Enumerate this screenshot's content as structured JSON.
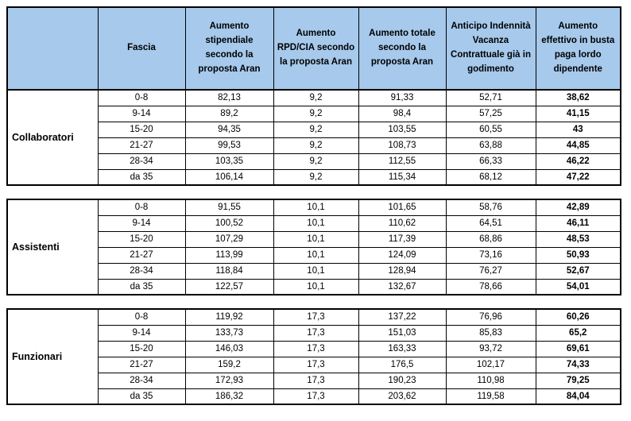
{
  "colors": {
    "header_bg": "#a6c9ec",
    "border": "#000000",
    "text": "#000000",
    "page_bg": "#ffffff"
  },
  "table": {
    "columns": [
      "",
      "Fascia",
      "Aumento stipendiale secondo la proposta Aran",
      "Aumento RPD/CIA secondo la proposta Aran",
      "Aumento totale secondo la proposta Aran",
      "Anticipo Indennità Vacanza Contrattuale già in godimento",
      "Aumento effettivo in busta paga lordo dipendente"
    ],
    "groups": [
      {
        "name": "Collaboratori",
        "rows": [
          [
            "0-8",
            "82,13",
            "9,2",
            "91,33",
            "52,71",
            "38,62"
          ],
          [
            "9-14",
            "89,2",
            "9,2",
            "98,4",
            "57,25",
            "41,15"
          ],
          [
            "15-20",
            "94,35",
            "9,2",
            "103,55",
            "60,55",
            "43"
          ],
          [
            "21-27",
            "99,53",
            "9,2",
            "108,73",
            "63,88",
            "44,85"
          ],
          [
            "28-34",
            "103,35",
            "9,2",
            "112,55",
            "66,33",
            "46,22"
          ],
          [
            "da 35",
            "106,14",
            "9,2",
            "115,34",
            "68,12",
            "47,22"
          ]
        ]
      },
      {
        "name": "Assistenti",
        "rows": [
          [
            "0-8",
            "91,55",
            "10,1",
            "101,65",
            "58,76",
            "42,89"
          ],
          [
            "9-14",
            "100,52",
            "10,1",
            "110,62",
            "64,51",
            "46,11"
          ],
          [
            "15-20",
            "107,29",
            "10,1",
            "117,39",
            "68,86",
            "48,53"
          ],
          [
            "21-27",
            "113,99",
            "10,1",
            "124,09",
            "73,16",
            "50,93"
          ],
          [
            "28-34",
            "118,84",
            "10,1",
            "128,94",
            "76,27",
            "52,67"
          ],
          [
            "da 35",
            "122,57",
            "10,1",
            "132,67",
            "78,66",
            "54,01"
          ]
        ]
      },
      {
        "name": "Funzionari",
        "rows": [
          [
            "0-8",
            "119,92",
            "17,3",
            "137,22",
            "76,96",
            "60,26"
          ],
          [
            "9-14",
            "133,73",
            "17,3",
            "151,03",
            "85,83",
            "65,2"
          ],
          [
            "15-20",
            "146,03",
            "17,3",
            "163,33",
            "93,72",
            "69,61"
          ],
          [
            "21-27",
            "159,2",
            "17,3",
            "176,5",
            "102,17",
            "74,33"
          ],
          [
            "28-34",
            "172,93",
            "17,3",
            "190,23",
            "110,98",
            "79,25"
          ],
          [
            "da 35",
            "186,32",
            "17,3",
            "203,62",
            "119,58",
            "84,04"
          ]
        ]
      }
    ]
  }
}
